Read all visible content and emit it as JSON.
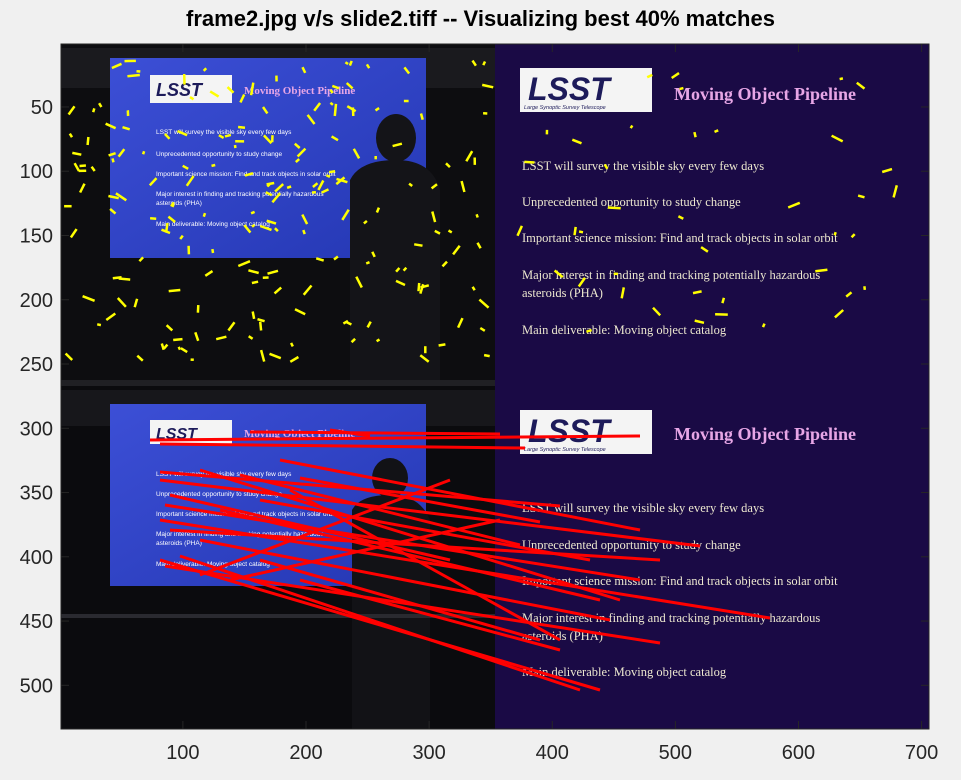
{
  "figure": {
    "title": "frame2.jpg v/s slide2.tiff -- Visualizing best 40% matches",
    "xlim": [
      1,
      706
    ],
    "ylim": [
      1,
      534
    ],
    "xticks": [
      100,
      200,
      300,
      400,
      500,
      600,
      700
    ],
    "yticks": [
      50,
      100,
      150,
      200,
      250,
      300,
      350,
      400,
      450,
      500
    ],
    "axis_color": "#262626",
    "keypoint_color": "#ffff00",
    "match_color": "#ff0000",
    "slide_bg_color": "#1a0a45"
  },
  "slide": {
    "logo_text": "LSST",
    "logo_subtitle": "Large Synoptic Survey Telescope",
    "title": "Moving Object Pipeline",
    "bullets": [
      "LSST will survey the visible sky every few days",
      "Unprecedented opportunity to study change",
      "Important science mission: Find and track objects in solar orbit",
      "Major interest in finding and tracking potentially hazardous",
      "asteroids (PHA)",
      "Main deliverable: Moving object catalog"
    ]
  },
  "projected_slide": {
    "logo_text": "LSST",
    "title": "Moving Object Pipeline",
    "bullets": [
      "LSST will survey the visible sky every few days",
      "Unprecedented opportunity to study change",
      "Important science mission: Find and track objects in solar orbit",
      "Major interest in finding and tracking potentially hazardous",
      "asteroids (PHA)",
      "Main deliverable: Moving object catalog"
    ]
  }
}
